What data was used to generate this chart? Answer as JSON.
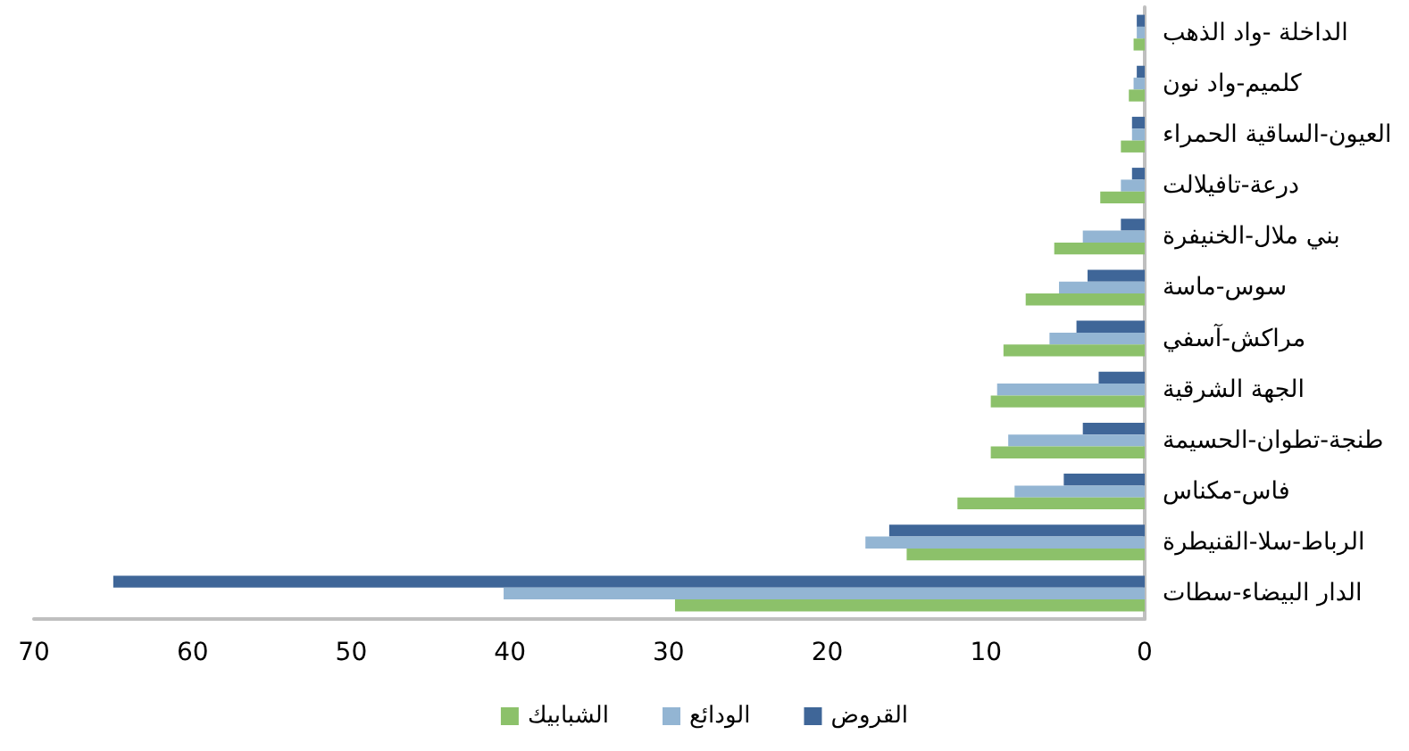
{
  "chart_data": {
    "type": "bar",
    "orientation": "horizontal",
    "categories": [
      "الداخلة -واد الذهب",
      "كلميم-واد نون",
      "العيون-الساقية الحمراء",
      "درعة-تافيلالت",
      "بني ملال-الخنيفرة",
      "سوس-ماسة",
      "مراكش-آسفي",
      "الجهة الشرقية",
      "طنجة-تطوان-الحسيمة",
      "فاس-مكناس",
      "الرباط-سلا-القنيطرة",
      "الدار البيضاء-سطات"
    ],
    "series": [
      {
        "name": "القروض",
        "color": "#3f6698",
        "values": [
          0.5,
          0.5,
          0.8,
          0.8,
          1.5,
          3.6,
          4.3,
          2.9,
          3.9,
          5.1,
          16.1,
          65
        ]
      },
      {
        "name": "الودائع",
        "color": "#93b5d3",
        "values": [
          0.5,
          0.7,
          0.8,
          1.5,
          3.9,
          5.4,
          6.0,
          9.3,
          8.6,
          8.2,
          17.6,
          40.4
        ]
      },
      {
        "name": "الشبابيك",
        "color": "#8cc16a",
        "values": [
          0.7,
          1.0,
          1.5,
          2.8,
          5.7,
          7.5,
          8.9,
          9.7,
          9.7,
          11.8,
          15.0,
          29.6
        ]
      }
    ],
    "xlim": [
      70,
      0
    ],
    "xticks": [
      70,
      60,
      50,
      40,
      30,
      20,
      10,
      0
    ],
    "grid": false,
    "legend": "bottom"
  }
}
